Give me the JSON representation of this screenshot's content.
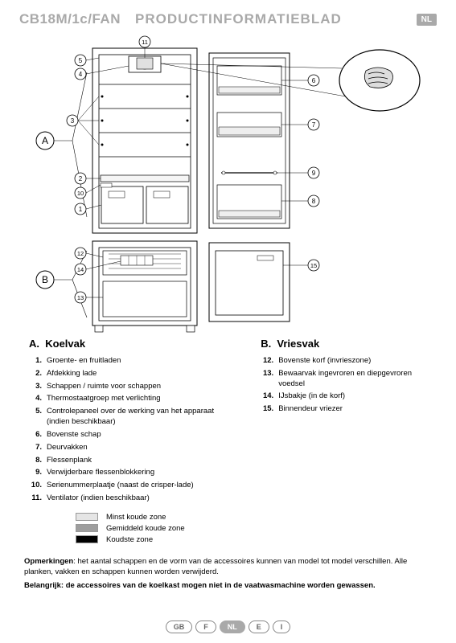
{
  "header": {
    "model": "CB18M/1c/FAN",
    "title": "PRODUCTINFORMATIEBLAD",
    "lang": "NL"
  },
  "sections": {
    "a": {
      "letter": "A.",
      "name": "Koelvak"
    },
    "b": {
      "letter": "B.",
      "name": "Vriesvak"
    }
  },
  "items_a": [
    {
      "n": "1.",
      "t": "Groente- en fruitladen"
    },
    {
      "n": "2.",
      "t": "Afdekking lade"
    },
    {
      "n": "3.",
      "t": "Schappen / ruimte voor schappen"
    },
    {
      "n": "4.",
      "t": "Thermostaatgroep met verlichting"
    },
    {
      "n": "5.",
      "t": "Controlepaneel over de werking van het apparaat\n(indien beschikbaar)"
    },
    {
      "n": "6.",
      "t": "Bovenste schap"
    },
    {
      "n": "7.",
      "t": "Deurvakken"
    },
    {
      "n": "8.",
      "t": "Flessenplank"
    },
    {
      "n": "9.",
      "t": "Verwijderbare flessenblokkering"
    },
    {
      "n": "10.",
      "t": "Serienummerplaatje (naast de crisper-lade)"
    },
    {
      "n": "11.",
      "t": "Ventilator (indien beschikbaar)"
    }
  ],
  "items_b": [
    {
      "n": "12.",
      "t": "Bovenste korf (invrieszone)"
    },
    {
      "n": "13.",
      "t": "Bewaarvak ingevroren en diepgevroren voedsel"
    },
    {
      "n": "14.",
      "t": "IJsbakje (in de korf)"
    },
    {
      "n": "15.",
      "t": "Binnendeur vriezer"
    }
  ],
  "zones": [
    {
      "color": "#e5e5e5",
      "label": "Minst koude zone"
    },
    {
      "color": "#9e9e9e",
      "label": "Gemiddeld koude zone"
    },
    {
      "color": "#000000",
      "label": "Koudste zone"
    }
  ],
  "notes": {
    "line1_bold": "Opmerkingen",
    "line1_rest": ": het aantal schappen en de vorm van de accessoires kunnen van model tot model verschillen. Alle planken, vakken en schappen kunnen worden verwijderd.",
    "line2_bold": "Belangrijk: de accessoires van de koelkast mogen niet in de vaatwasmachine worden gewassen."
  },
  "footer_langs": [
    "GB",
    "F",
    "NL",
    "E",
    "I"
  ],
  "footer_active": "NL",
  "diagram": {
    "stroke": "#000000",
    "callout_stroke": "#000000",
    "section_labels": {
      "a": "A",
      "b": "B"
    },
    "callouts": [
      "1",
      "2",
      "3",
      "4",
      "5",
      "6",
      "7",
      "8",
      "9",
      "10",
      "11",
      "12",
      "13",
      "14",
      "15"
    ]
  }
}
